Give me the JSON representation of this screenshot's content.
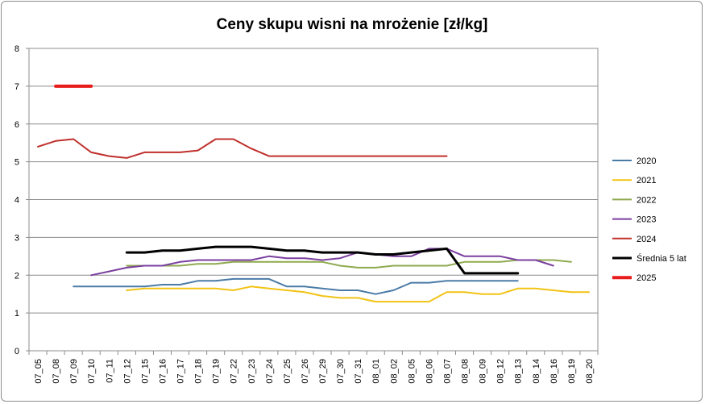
{
  "chart_data": {
    "type": "line",
    "title": "Ceny skupu wisni na mrożenie [zł/kg]",
    "xlabel": "",
    "ylabel": "",
    "ylim": [
      0,
      8
    ],
    "yticks": [
      "0",
      "1",
      "2",
      "3",
      "4",
      "5",
      "6",
      "7",
      "8"
    ],
    "grid": true,
    "legend_position": "right",
    "categories": [
      "07_05",
      "07_08",
      "07_09",
      "07_10",
      "07_11",
      "07_12",
      "07_15",
      "07_16",
      "07_17",
      "07_18",
      "07_19",
      "07_22",
      "07_23",
      "07_24",
      "07_25",
      "07_26",
      "07_29",
      "07_30",
      "07_31",
      "08_01",
      "08_02",
      "08_05",
      "08_06",
      "08_07",
      "08_08",
      "08_09",
      "08_12",
      "08_13",
      "08_14",
      "08_16",
      "08_19",
      "08_20"
    ],
    "series": [
      {
        "name": "2020",
        "color": "#4a7ba7",
        "width": 2,
        "values": [
          null,
          null,
          1.7,
          1.7,
          1.7,
          1.7,
          1.7,
          1.75,
          1.75,
          1.85,
          1.85,
          1.9,
          1.9,
          1.9,
          1.7,
          1.7,
          1.65,
          1.6,
          1.6,
          1.5,
          1.6,
          1.8,
          1.8,
          1.85,
          1.85,
          1.85,
          1.85,
          1.85,
          null,
          null,
          null,
          null
        ]
      },
      {
        "name": "2021",
        "color": "#f2c314",
        "width": 2,
        "values": [
          null,
          null,
          null,
          null,
          null,
          1.6,
          1.65,
          1.65,
          1.65,
          1.65,
          1.65,
          1.6,
          1.7,
          1.65,
          1.6,
          1.55,
          1.45,
          1.4,
          1.4,
          1.3,
          1.3,
          1.3,
          1.3,
          1.55,
          1.55,
          1.5,
          1.5,
          1.65,
          1.65,
          1.6,
          1.55,
          1.55
        ]
      },
      {
        "name": "2022",
        "color": "#8faa4f",
        "width": 2,
        "values": [
          null,
          null,
          null,
          null,
          null,
          2.25,
          2.25,
          2.25,
          2.25,
          2.3,
          2.3,
          2.35,
          2.35,
          2.35,
          2.35,
          2.35,
          2.35,
          2.25,
          2.2,
          2.2,
          2.25,
          2.25,
          2.25,
          2.25,
          2.35,
          2.35,
          2.35,
          2.4,
          2.4,
          2.4,
          2.35,
          null
        ]
      },
      {
        "name": "2023",
        "color": "#7a3fa0",
        "width": 2,
        "values": [
          null,
          null,
          null,
          2.0,
          2.1,
          2.2,
          2.25,
          2.25,
          2.35,
          2.4,
          2.4,
          2.4,
          2.4,
          2.5,
          2.45,
          2.45,
          2.4,
          2.45,
          2.6,
          2.55,
          2.5,
          2.5,
          2.7,
          2.7,
          2.5,
          2.5,
          2.5,
          2.4,
          2.4,
          2.25,
          null,
          null
        ]
      },
      {
        "name": "2024",
        "color": "#c0302c",
        "width": 2,
        "values": [
          5.4,
          5.55,
          5.6,
          5.25,
          5.15,
          5.1,
          5.25,
          5.25,
          5.25,
          5.3,
          5.6,
          5.6,
          5.35,
          5.15,
          5.15,
          5.15,
          5.15,
          5.15,
          5.15,
          5.15,
          5.15,
          5.15,
          5.15,
          5.15,
          null,
          null,
          null,
          null,
          null,
          null,
          null,
          null
        ]
      },
      {
        "name": "Średnia 5 lat",
        "color": "#000000",
        "width": 3,
        "values": [
          null,
          null,
          null,
          null,
          null,
          2.6,
          2.6,
          2.65,
          2.65,
          2.7,
          2.75,
          2.75,
          2.75,
          2.7,
          2.65,
          2.65,
          2.6,
          2.6,
          2.6,
          2.55,
          2.55,
          2.6,
          2.65,
          2.7,
          2.05,
          2.05,
          2.05,
          2.05,
          null,
          null,
          null,
          null
        ]
      },
      {
        "name": "2025",
        "color": "#e81c1c",
        "width": 4,
        "values": [
          null,
          7.0,
          7.0,
          7.0,
          null,
          null,
          null,
          null,
          null,
          null,
          null,
          null,
          null,
          null,
          null,
          null,
          null,
          null,
          null,
          null,
          null,
          null,
          null,
          null,
          null,
          null,
          null,
          null,
          null,
          null,
          null,
          null
        ]
      }
    ]
  }
}
